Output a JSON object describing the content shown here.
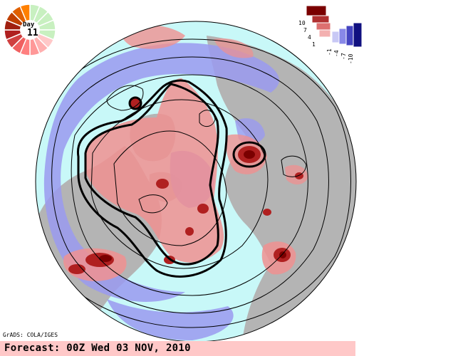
{
  "credit": "GrADS: COLA/IGES",
  "forecast": "Forecast: 00Z Wed 03 NOV, 2010",
  "day_indicator": {
    "label": "Day",
    "value": "11"
  },
  "colorbar": {
    "labels": [
      "10",
      "7",
      "4",
      "1",
      "-1",
      "-4",
      "-7",
      "-10"
    ],
    "colors": [
      "#7a0000",
      "#b03030",
      "#dd7070",
      "#f3b0b0",
      "#c8c8f5",
      "#8888e8",
      "#4444c0",
      "#101080"
    ]
  },
  "map_colors": {
    "ocean": "#c8f8f8",
    "land": "#b4b4b4",
    "positive": "#f09090",
    "positive_strong": "#b02020",
    "negative": "#9a9af0"
  }
}
